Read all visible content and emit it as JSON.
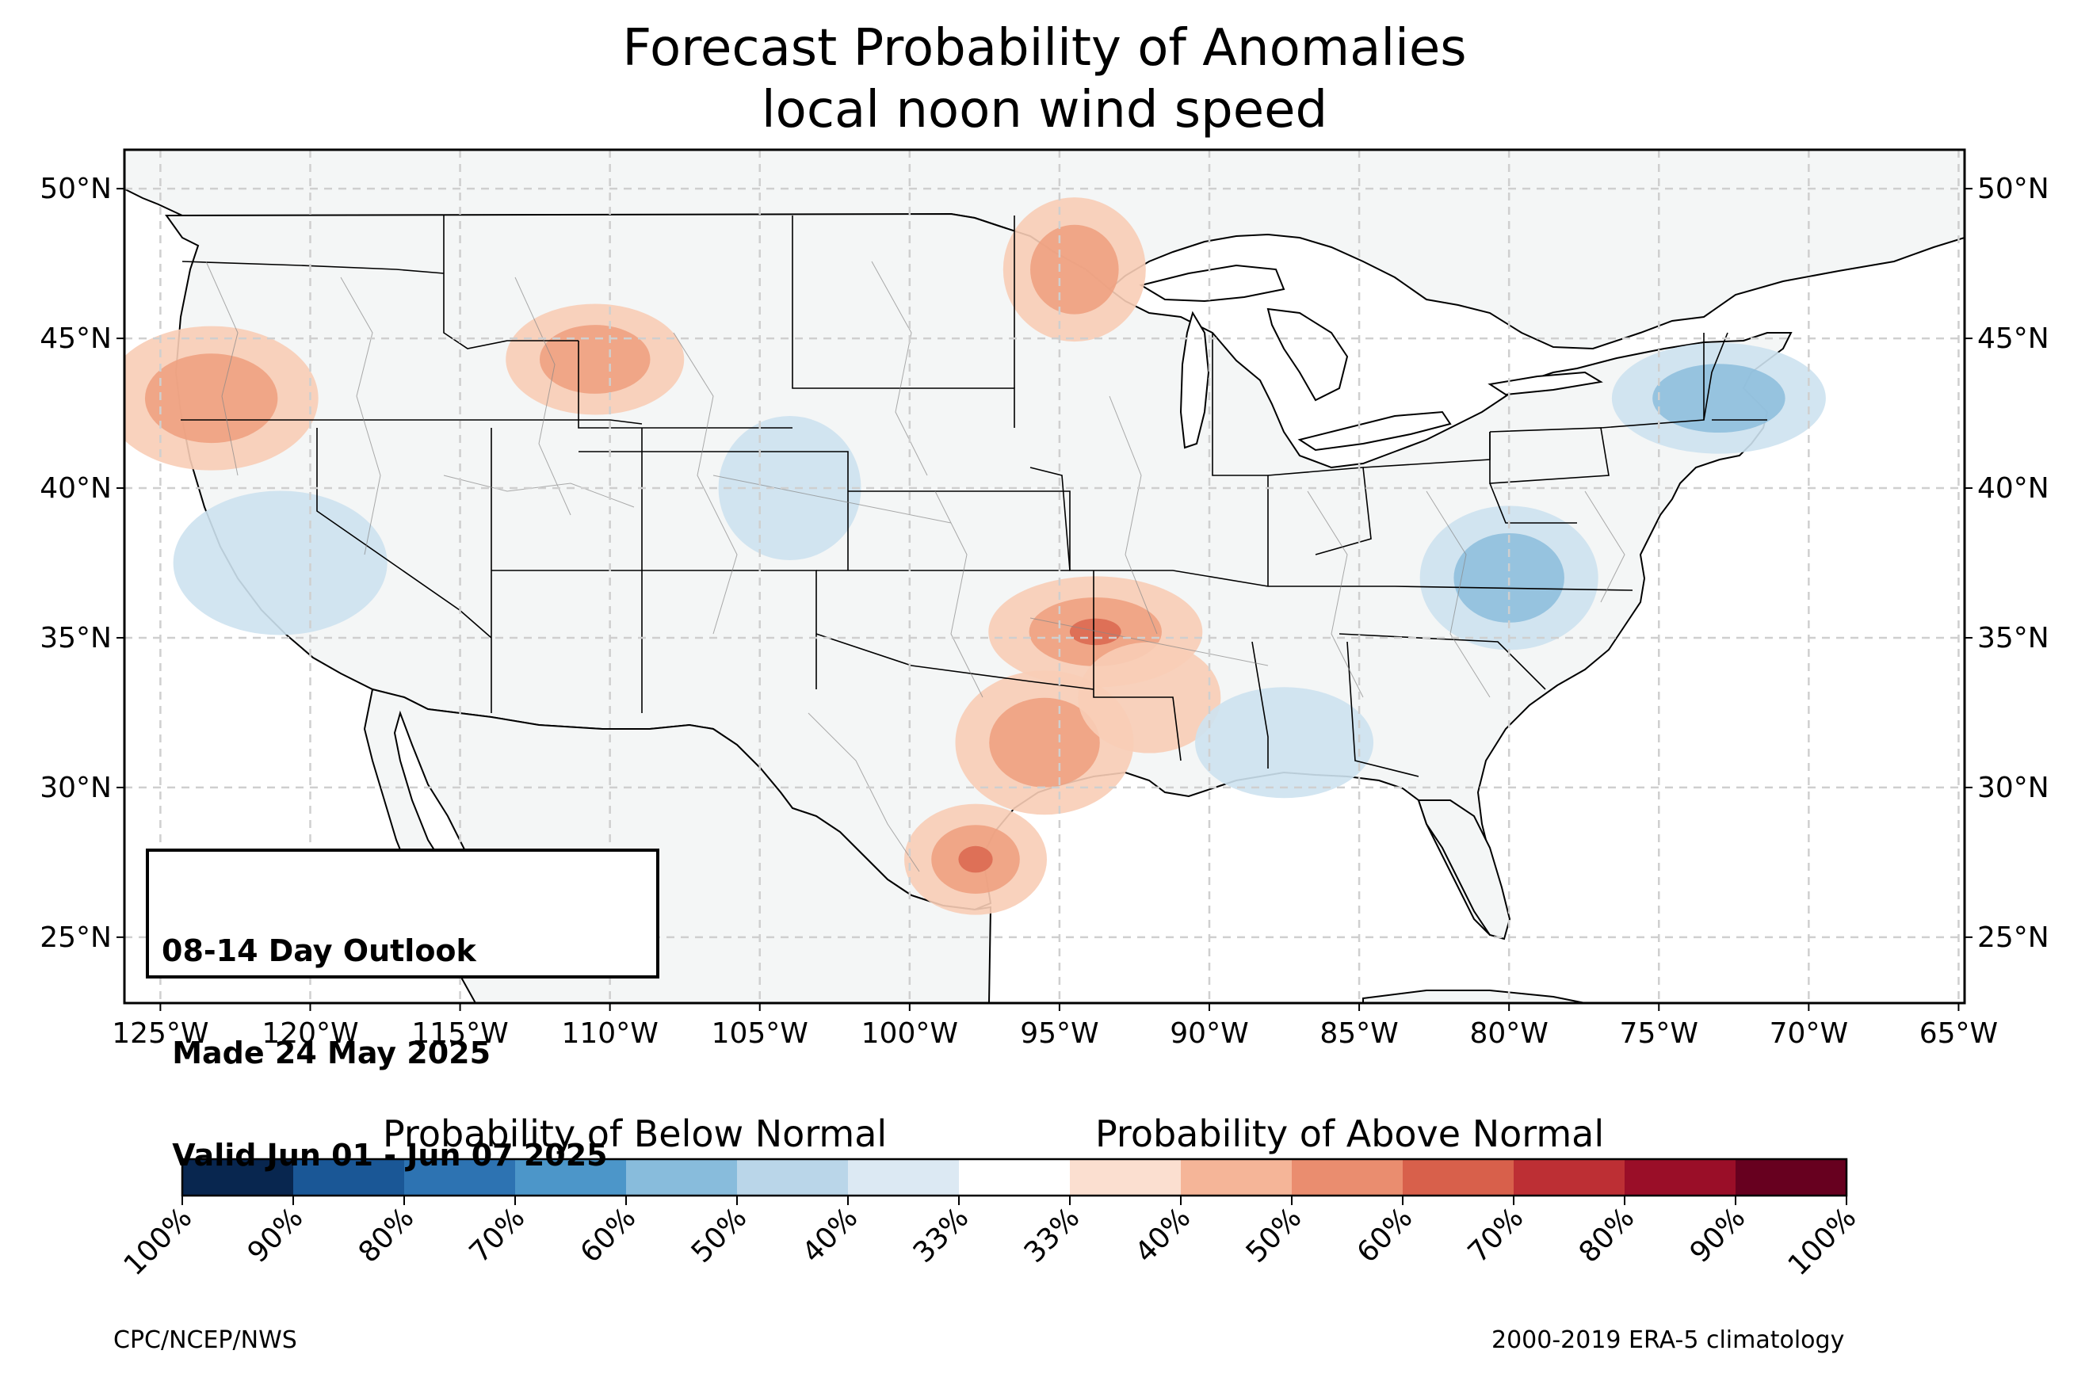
{
  "title": "Forecast Probability of Anomalies",
  "subtitle": "local noon wind speed",
  "outlook": {
    "line1": "08-14 Day Outlook",
    "line2": " Made 24 May 2025",
    "line3": " Valid Jun 01 - Jun 07 2025"
  },
  "axes": {
    "lat_labels": [
      "50°N",
      "45°N",
      "40°N",
      "35°N",
      "30°N",
      "25°N"
    ],
    "lon_labels": [
      "125°W",
      "120°W",
      "115°W",
      "110°W",
      "105°W",
      "100°W",
      "95°W",
      "90°W",
      "85°W",
      "80°W",
      "75°W",
      "70°W",
      "65°W"
    ],
    "lat_range": [
      22.8,
      51.3
    ],
    "lon_range": [
      -126.2,
      -64.8
    ]
  },
  "colorbar": {
    "below_label": "Probability of Below Normal",
    "above_label": "Probability of Above Normal",
    "tick_labels": [
      "100%",
      "90%",
      "80%",
      "70%",
      "60%",
      "50%",
      "40%",
      "33%",
      "33%",
      "40%",
      "50%",
      "60%",
      "70%",
      "80%",
      "90%",
      "100%"
    ],
    "colors": [
      "#08264f",
      "#1a5796",
      "#2d73b2",
      "#4c96c9",
      "#88bcdc",
      "#bad6e9",
      "#dce9f3",
      "#ffffff",
      "#fbdfd0",
      "#f5b598",
      "#ea8d6f",
      "#d8604b",
      "#bd2f34",
      "#9a0e28",
      "#67001f"
    ]
  },
  "footer": {
    "left": "CPC/NCEP/NWS",
    "right": "2000-2019 ERA-5 climatology"
  },
  "colors": {
    "land": "#f4f6f6",
    "gridline": "#cfcfcf",
    "above_light": "#f8cdb6",
    "above_mid": "#eea181",
    "above_strong": "#dc6a52",
    "below_light": "#cde2f0",
    "below_mid": "#8fbfdd",
    "below_strong": "#5a9fcd"
  },
  "anomaly_regions": [
    {
      "category": "above",
      "level": 3,
      "lon": -97.8,
      "lat": 27.6
    },
    {
      "category": "above",
      "level": 2,
      "lon": -95.5,
      "lat": 31.5
    },
    {
      "category": "above",
      "level": 3,
      "lon": -93.8,
      "lat": 35.2
    },
    {
      "category": "above",
      "level": 2,
      "lon": -94.5,
      "lat": 47.3
    },
    {
      "category": "above",
      "level": 2,
      "lon": -110.5,
      "lat": 44.3
    },
    {
      "category": "above",
      "level": 2,
      "lon": -123.3,
      "lat": 43.0
    },
    {
      "category": "above",
      "level": 1,
      "lon": -92.0,
      "lat": 33.0
    },
    {
      "category": "below",
      "level": 2,
      "lon": -80.0,
      "lat": 37.0
    },
    {
      "category": "below",
      "level": 2,
      "lon": -73.0,
      "lat": 43.0
    },
    {
      "category": "below",
      "level": 1,
      "lon": -104.0,
      "lat": 40.0
    },
    {
      "category": "below",
      "level": 1,
      "lon": -87.5,
      "lat": 31.5
    },
    {
      "category": "below",
      "level": 1,
      "lon": -121.0,
      "lat": 37.5
    }
  ]
}
